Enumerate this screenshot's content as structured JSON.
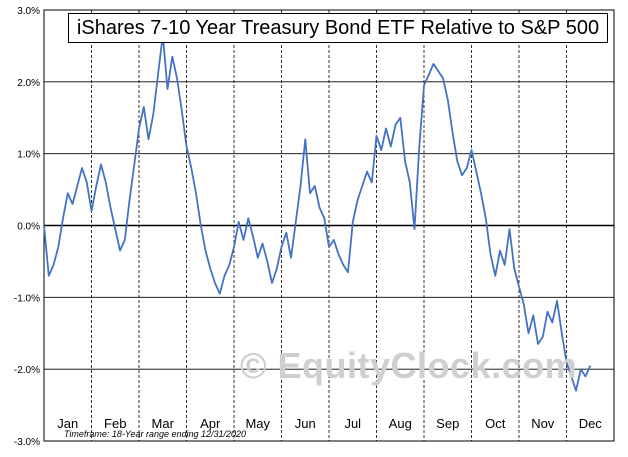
{
  "chart_data": {
    "type": "line",
    "title": "iShares 7-10 Year Treasury Bond ETF Relative to S&P 500",
    "xlabel": "",
    "ylabel": "",
    "ylim": [
      -3.0,
      3.0
    ],
    "y_ticks": [
      "3.0%",
      "2.0%",
      "1.0%",
      "0.0%",
      "-1.0%",
      "-2.0%",
      "-3.0%"
    ],
    "y_tick_values": [
      3,
      2,
      1,
      0,
      -1,
      -2,
      -3
    ],
    "months": [
      "Jan",
      "Feb",
      "Mar",
      "Apr",
      "May",
      "Jun",
      "Jul",
      "Aug",
      "Sep",
      "Oct",
      "Nov",
      "Dec"
    ],
    "grid": true,
    "line_color": "#4472c4",
    "series": [
      {
        "values": [
          [
            0.0,
            0.0
          ],
          [
            0.1,
            -0.7
          ],
          [
            0.2,
            -0.55
          ],
          [
            0.3,
            -0.3
          ],
          [
            0.4,
            0.1
          ],
          [
            0.5,
            0.45
          ],
          [
            0.6,
            0.3
          ],
          [
            0.7,
            0.55
          ],
          [
            0.8,
            0.8
          ],
          [
            0.9,
            0.6
          ],
          [
            1.0,
            0.2
          ],
          [
            1.1,
            0.55
          ],
          [
            1.2,
            0.85
          ],
          [
            1.3,
            0.6
          ],
          [
            1.4,
            0.25
          ],
          [
            1.5,
            -0.05
          ],
          [
            1.6,
            -0.35
          ],
          [
            1.7,
            -0.2
          ],
          [
            1.8,
            0.35
          ],
          [
            1.9,
            0.85
          ],
          [
            2.0,
            1.35
          ],
          [
            2.1,
            1.65
          ],
          [
            2.2,
            1.2
          ],
          [
            2.3,
            1.55
          ],
          [
            2.4,
            2.1
          ],
          [
            2.5,
            2.65
          ],
          [
            2.6,
            1.9
          ],
          [
            2.7,
            2.35
          ],
          [
            2.8,
            2.05
          ],
          [
            2.9,
            1.6
          ],
          [
            3.0,
            1.1
          ],
          [
            3.1,
            0.8
          ],
          [
            3.2,
            0.45
          ],
          [
            3.3,
            0.0
          ],
          [
            3.4,
            -0.35
          ],
          [
            3.5,
            -0.6
          ],
          [
            3.6,
            -0.8
          ],
          [
            3.7,
            -0.95
          ],
          [
            3.8,
            -0.7
          ],
          [
            3.9,
            -0.55
          ],
          [
            4.0,
            -0.3
          ],
          [
            4.1,
            0.05
          ],
          [
            4.2,
            -0.2
          ],
          [
            4.3,
            0.1
          ],
          [
            4.4,
            -0.15
          ],
          [
            4.5,
            -0.45
          ],
          [
            4.6,
            -0.25
          ],
          [
            4.7,
            -0.5
          ],
          [
            4.8,
            -0.8
          ],
          [
            4.9,
            -0.6
          ],
          [
            5.0,
            -0.3
          ],
          [
            5.1,
            -0.1
          ],
          [
            5.2,
            -0.45
          ],
          [
            5.3,
            0.05
          ],
          [
            5.4,
            0.55
          ],
          [
            5.5,
            1.2
          ],
          [
            5.6,
            0.45
          ],
          [
            5.7,
            0.55
          ],
          [
            5.8,
            0.25
          ],
          [
            5.9,
            0.1
          ],
          [
            6.0,
            -0.3
          ],
          [
            6.1,
            -0.2
          ],
          [
            6.2,
            -0.4
          ],
          [
            6.3,
            -0.55
          ],
          [
            6.4,
            -0.65
          ],
          [
            6.5,
            0.05
          ],
          [
            6.6,
            0.35
          ],
          [
            6.7,
            0.55
          ],
          [
            6.8,
            0.75
          ],
          [
            6.9,
            0.6
          ],
          [
            7.0,
            1.25
          ],
          [
            7.1,
            1.05
          ],
          [
            7.2,
            1.35
          ],
          [
            7.3,
            1.1
          ],
          [
            7.4,
            1.4
          ],
          [
            7.5,
            1.5
          ],
          [
            7.6,
            0.9
          ],
          [
            7.7,
            0.6
          ],
          [
            7.8,
            -0.05
          ],
          [
            7.9,
            1.1
          ],
          [
            8.0,
            1.95
          ],
          [
            8.1,
            2.1
          ],
          [
            8.2,
            2.25
          ],
          [
            8.3,
            2.15
          ],
          [
            8.4,
            2.05
          ],
          [
            8.5,
            1.75
          ],
          [
            8.6,
            1.3
          ],
          [
            8.7,
            0.9
          ],
          [
            8.8,
            0.7
          ],
          [
            8.9,
            0.8
          ],
          [
            9.0,
            1.05
          ],
          [
            9.1,
            0.75
          ],
          [
            9.2,
            0.45
          ],
          [
            9.3,
            0.1
          ],
          [
            9.4,
            -0.4
          ],
          [
            9.5,
            -0.7
          ],
          [
            9.6,
            -0.35
          ],
          [
            9.7,
            -0.55
          ],
          [
            9.8,
            -0.05
          ],
          [
            9.9,
            -0.6
          ],
          [
            10.0,
            -0.85
          ],
          [
            10.1,
            -1.1
          ],
          [
            10.2,
            -1.5
          ],
          [
            10.3,
            -1.25
          ],
          [
            10.4,
            -1.65
          ],
          [
            10.5,
            -1.55
          ],
          [
            10.6,
            -1.2
          ],
          [
            10.7,
            -1.35
          ],
          [
            10.8,
            -1.05
          ],
          [
            10.9,
            -1.5
          ],
          [
            11.0,
            -1.9
          ],
          [
            11.1,
            -2.1
          ],
          [
            11.2,
            -2.3
          ],
          [
            11.3,
            -2.0
          ],
          [
            11.4,
            -2.1
          ],
          [
            11.5,
            -1.95
          ]
        ]
      }
    ]
  },
  "footnote": "Timeframe: 18-Year range ending 12/31/2020",
  "watermark": "© EquityClock.com"
}
